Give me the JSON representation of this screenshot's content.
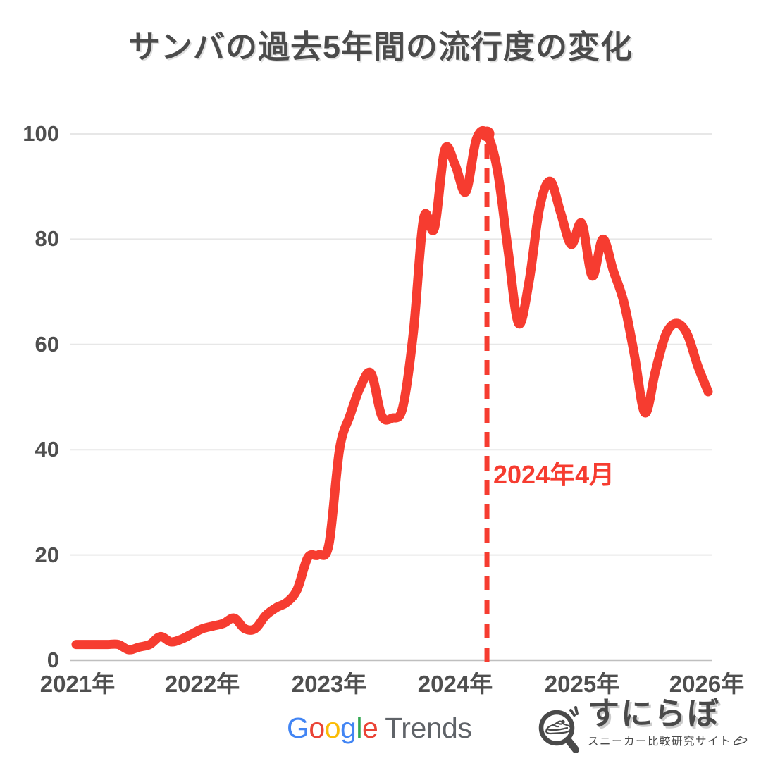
{
  "title": "サンバの過去5年間の流行度の変化",
  "chart_data": {
    "type": "line",
    "title": "サンバの過去5年間の流行度の変化",
    "x_ticks": [
      "2021年",
      "2022年",
      "2023年",
      "2024年",
      "2025年",
      "2026年"
    ],
    "y_ticks": [
      "0",
      "20",
      "40",
      "60",
      "80",
      "100"
    ],
    "ylim": [
      0,
      100
    ],
    "grid": true,
    "line_color": "#f63c30",
    "grid_color": "#e7e7e7",
    "axis_color": "#bfbfbf",
    "months": [
      "2021-01",
      "2021-02",
      "2021-03",
      "2021-04",
      "2021-05",
      "2021-06",
      "2021-07",
      "2021-08",
      "2021-09",
      "2021-10",
      "2021-11",
      "2021-12",
      "2022-01",
      "2022-02",
      "2022-03",
      "2022-04",
      "2022-05",
      "2022-06",
      "2022-07",
      "2022-08",
      "2022-09",
      "2022-10",
      "2022-11",
      "2022-12",
      "2023-01",
      "2023-02",
      "2023-03",
      "2023-04",
      "2023-05",
      "2023-06",
      "2023-07",
      "2023-08",
      "2023-09",
      "2023-10",
      "2023-11",
      "2023-12",
      "2024-01",
      "2024-02",
      "2024-03",
      "2024-04",
      "2024-05",
      "2024-06",
      "2024-07",
      "2024-08",
      "2024-09",
      "2024-10",
      "2024-11",
      "2024-12",
      "2025-01",
      "2025-02",
      "2025-03",
      "2025-04",
      "2025-05",
      "2025-06",
      "2025-07",
      "2025-08",
      "2025-09",
      "2025-10",
      "2025-11",
      "2025-12",
      "2026-01"
    ],
    "values": [
      3,
      3,
      3,
      3,
      3,
      2,
      2.5,
      3,
      4.5,
      3.5,
      4,
      5,
      6,
      6.5,
      7,
      8,
      6,
      6,
      8.5,
      10,
      11,
      13.5,
      19.5,
      20,
      22,
      40,
      46.5,
      52,
      54.5,
      46.5,
      46,
      48,
      62,
      84,
      82,
      97,
      94,
      89,
      99,
      100,
      93,
      78,
      64,
      72,
      86,
      91,
      85,
      79,
      83,
      73,
      80,
      74,
      68,
      58,
      47,
      55,
      62,
      64,
      62,
      56,
      51
    ],
    "annotation": {
      "label": "2024年4月",
      "month": "2024-04",
      "month_index": 39,
      "color": "#f63c30"
    }
  },
  "annotation": {
    "label": "2024年4月"
  },
  "footer": {
    "google": {
      "letters": [
        {
          "ch": "G",
          "color": "#4285F4"
        },
        {
          "ch": "o",
          "color": "#EA4335"
        },
        {
          "ch": "o",
          "color": "#FBBC05"
        },
        {
          "ch": "g",
          "color": "#4285F4"
        },
        {
          "ch": "l",
          "color": "#34A853"
        },
        {
          "ch": "e",
          "color": "#EA4335"
        }
      ],
      "suffix": "Trends",
      "suffix_color": "#5f6368"
    },
    "sunilabo": {
      "name": "すにらぼ",
      "tagline": "スニーカー比較研究サイト"
    }
  }
}
